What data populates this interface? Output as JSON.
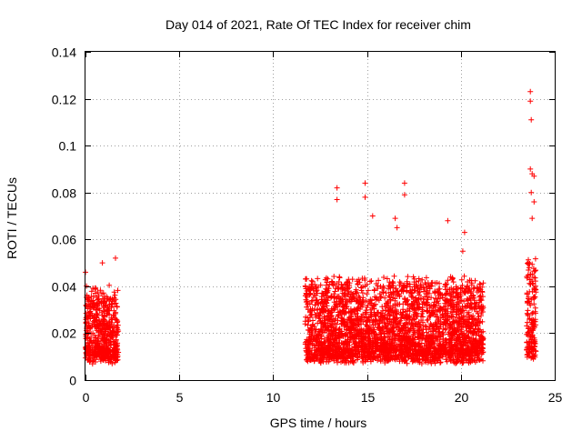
{
  "chart_data": {
    "type": "scatter",
    "title": "Day 014 of 2021, Rate Of TEC Index for receiver chim",
    "xlabel": "GPS time / hours",
    "ylabel": "ROTI / TECUs",
    "xlim": [
      0,
      25
    ],
    "ylim": [
      0,
      0.14
    ],
    "xticks": [
      0,
      5,
      10,
      15,
      20,
      25
    ],
    "xtick_labels": [
      "0",
      "5",
      "10",
      "15",
      "20",
      "25"
    ],
    "yticks": [
      0,
      0.02,
      0.04,
      0.06,
      0.08,
      0.1,
      0.12,
      0.14
    ],
    "ytick_labels": [
      "0",
      "0.02",
      "0.04",
      "0.06",
      "0.08",
      "0.1",
      "0.12",
      "0.14"
    ],
    "grid": true,
    "marker": "+",
    "color": "#ff0000",
    "series": [
      {
        "name": "ROTI",
        "segments": [
          {
            "x_start": 0.0,
            "x_end": 1.75,
            "base": 0.022,
            "spread": 0.028
          },
          {
            "x_start": 11.7,
            "x_end": 21.2,
            "base": 0.022,
            "spread": 0.032
          },
          {
            "x_start": 23.5,
            "x_end": 24.0,
            "base": 0.025,
            "spread": 0.04
          }
        ],
        "notable_points": [
          {
            "x": 0.0,
            "y": 0.046
          },
          {
            "x": 0.9,
            "y": 0.05
          },
          {
            "x": 1.6,
            "y": 0.052
          },
          {
            "x": 13.4,
            "y": 0.082
          },
          {
            "x": 13.4,
            "y": 0.077
          },
          {
            "x": 14.9,
            "y": 0.084
          },
          {
            "x": 14.9,
            "y": 0.078
          },
          {
            "x": 15.3,
            "y": 0.07
          },
          {
            "x": 16.5,
            "y": 0.069
          },
          {
            "x": 16.6,
            "y": 0.065
          },
          {
            "x": 17.0,
            "y": 0.084
          },
          {
            "x": 17.0,
            "y": 0.079
          },
          {
            "x": 19.3,
            "y": 0.068
          },
          {
            "x": 20.2,
            "y": 0.063
          },
          {
            "x": 20.1,
            "y": 0.055
          },
          {
            "x": 23.7,
            "y": 0.123
          },
          {
            "x": 23.7,
            "y": 0.119
          },
          {
            "x": 23.75,
            "y": 0.111
          },
          {
            "x": 23.7,
            "y": 0.09
          },
          {
            "x": 23.8,
            "y": 0.088
          },
          {
            "x": 23.9,
            "y": 0.087
          },
          {
            "x": 23.75,
            "y": 0.08
          },
          {
            "x": 23.9,
            "y": 0.076
          },
          {
            "x": 23.8,
            "y": 0.069
          }
        ]
      }
    ]
  }
}
